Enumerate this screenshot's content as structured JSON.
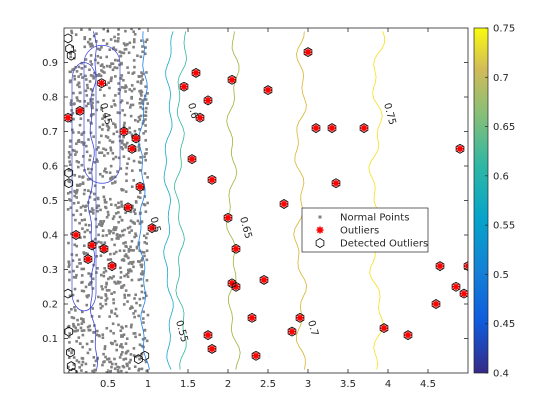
{
  "chart_data": {
    "type": "scatter",
    "title": "",
    "xlabel": "",
    "ylabel": "",
    "xlim": [
      -0.05,
      5.0
    ],
    "ylim": [
      0.0,
      1.0
    ],
    "xticks": [
      0.5,
      1,
      1.5,
      2,
      2.5,
      3,
      3.5,
      4,
      4.5
    ],
    "xtick_labels": [
      "0.5",
      "1",
      "1.5",
      "2",
      "2.5",
      "3",
      "3.5",
      "4",
      "4.5"
    ],
    "yticks": [
      0.1,
      0.2,
      0.3,
      0.4,
      0.5,
      0.6,
      0.7,
      0.8,
      0.9
    ],
    "ytick_labels": [
      "0.1",
      "0.2",
      "0.3",
      "0.4",
      "0.5",
      "0.6",
      "0.7",
      "0.8",
      "0.9"
    ],
    "grid": false,
    "legend": {
      "placement": "center-right",
      "entries": [
        "Normal Points",
        "Outliers",
        "Detected Outliers"
      ]
    },
    "colorbar": {
      "range": [
        0.4,
        0.75
      ],
      "ticks": [
        "0.4",
        "0.45",
        "0.5",
        "0.55",
        "0.6",
        "0.65",
        "0.7",
        "0.75"
      ],
      "colormap": "parula"
    },
    "normal_points": {
      "name": "Normal Points",
      "color": "#808080",
      "x_range": [
        0.0,
        1.0
      ],
      "y_range": [
        0.0,
        1.0
      ],
      "approx_count": 1000
    },
    "outliers": {
      "name": "Outliers",
      "color": "#ff0000",
      "points": [
        [
          0.0,
          0.74
        ],
        [
          0.1,
          0.4
        ],
        [
          0.15,
          0.76
        ],
        [
          0.25,
          0.33
        ],
        [
          0.3,
          0.37
        ],
        [
          0.42,
          0.84
        ],
        [
          0.45,
          0.36
        ],
        [
          0.55,
          0.31
        ],
        [
          0.7,
          0.7
        ],
        [
          0.75,
          0.48
        ],
        [
          0.8,
          0.65
        ],
        [
          0.85,
          0.68
        ],
        [
          0.9,
          0.54
        ],
        [
          1.05,
          0.42
        ],
        [
          1.45,
          0.83
        ],
        [
          1.55,
          0.62
        ],
        [
          1.6,
          0.87
        ],
        [
          1.65,
          0.74
        ],
        [
          1.75,
          0.79
        ],
        [
          1.75,
          0.11
        ],
        [
          1.8,
          0.56
        ],
        [
          1.8,
          0.07
        ],
        [
          2.0,
          0.45
        ],
        [
          2.05,
          0.85
        ],
        [
          2.05,
          0.26
        ],
        [
          2.1,
          0.25
        ],
        [
          2.1,
          0.36
        ],
        [
          2.3,
          0.16
        ],
        [
          2.35,
          0.05
        ],
        [
          2.45,
          0.27
        ],
        [
          2.5,
          0.82
        ],
        [
          2.7,
          0.49
        ],
        [
          2.8,
          0.12
        ],
        [
          2.9,
          0.16
        ],
        [
          3.0,
          0.93
        ],
        [
          3.1,
          0.71
        ],
        [
          3.3,
          0.71
        ],
        [
          3.35,
          0.55
        ],
        [
          3.7,
          0.71
        ],
        [
          3.95,
          0.13
        ],
        [
          4.25,
          0.11
        ],
        [
          4.6,
          0.2
        ],
        [
          4.65,
          0.31
        ],
        [
          4.85,
          0.25
        ],
        [
          4.9,
          0.65
        ],
        [
          4.95,
          0.23
        ],
        [
          5.0,
          0.31
        ]
      ]
    },
    "detected_outliers": {
      "name": "Detected Outliers",
      "color": "#000000",
      "points": [
        [
          0.0,
          0.97
        ],
        [
          0.02,
          0.94
        ],
        [
          0.04,
          0.92
        ],
        [
          0.0,
          0.74
        ],
        [
          0.01,
          0.58
        ],
        [
          0.01,
          0.55
        ],
        [
          0.0,
          0.23
        ],
        [
          0.01,
          0.12
        ],
        [
          0.03,
          0.06
        ],
        [
          0.04,
          0.02
        ],
        [
          0.06,
          0.0
        ],
        [
          0.1,
          0.4
        ],
        [
          0.15,
          0.76
        ],
        [
          0.25,
          0.33
        ],
        [
          0.3,
          0.37
        ],
        [
          0.42,
          0.84
        ],
        [
          0.45,
          0.36
        ],
        [
          0.55,
          0.31
        ],
        [
          0.7,
          0.7
        ],
        [
          0.75,
          0.48
        ],
        [
          0.8,
          0.65
        ],
        [
          0.85,
          0.68
        ],
        [
          0.9,
          0.54
        ],
        [
          0.88,
          0.04
        ],
        [
          0.96,
          0.05
        ],
        [
          1.05,
          0.42
        ],
        [
          1.45,
          0.83
        ],
        [
          1.55,
          0.62
        ],
        [
          1.6,
          0.87
        ],
        [
          1.65,
          0.74
        ],
        [
          1.75,
          0.79
        ],
        [
          1.75,
          0.11
        ],
        [
          1.8,
          0.56
        ],
        [
          1.8,
          0.07
        ],
        [
          2.0,
          0.45
        ],
        [
          2.05,
          0.85
        ],
        [
          2.05,
          0.26
        ],
        [
          2.1,
          0.25
        ],
        [
          2.1,
          0.36
        ],
        [
          2.3,
          0.16
        ],
        [
          2.35,
          0.05
        ],
        [
          2.45,
          0.27
        ],
        [
          2.5,
          0.82
        ],
        [
          2.7,
          0.49
        ],
        [
          2.8,
          0.12
        ],
        [
          2.9,
          0.16
        ],
        [
          3.0,
          0.93
        ],
        [
          3.1,
          0.71
        ],
        [
          3.3,
          0.71
        ],
        [
          3.35,
          0.55
        ],
        [
          3.7,
          0.71
        ],
        [
          3.95,
          0.13
        ],
        [
          4.25,
          0.11
        ],
        [
          4.6,
          0.2
        ],
        [
          4.65,
          0.31
        ],
        [
          4.85,
          0.25
        ],
        [
          4.9,
          0.65
        ],
        [
          4.95,
          0.23
        ],
        [
          5.0,
          0.31
        ]
      ]
    },
    "contours": [
      {
        "level": "0.45",
        "color": "#3a44d6",
        "x_approx": 0.35
      },
      {
        "level": "0.5",
        "color": "#1f7fe8",
        "x_approx": 0.98
      },
      {
        "level": "0.55",
        "color": "#16a9c8",
        "x_approx": 1.3
      },
      {
        "level": "0.6",
        "color": "#33b89a",
        "x_approx": 1.45
      },
      {
        "level": "0.65",
        "color": "#9ab63c",
        "x_approx": 2.1
      },
      {
        "level": "0.7",
        "color": "#d8b530",
        "x_approx": 2.95
      },
      {
        "level": "0.75",
        "color": "#f5e01c",
        "x_approx": 3.9
      }
    ]
  }
}
